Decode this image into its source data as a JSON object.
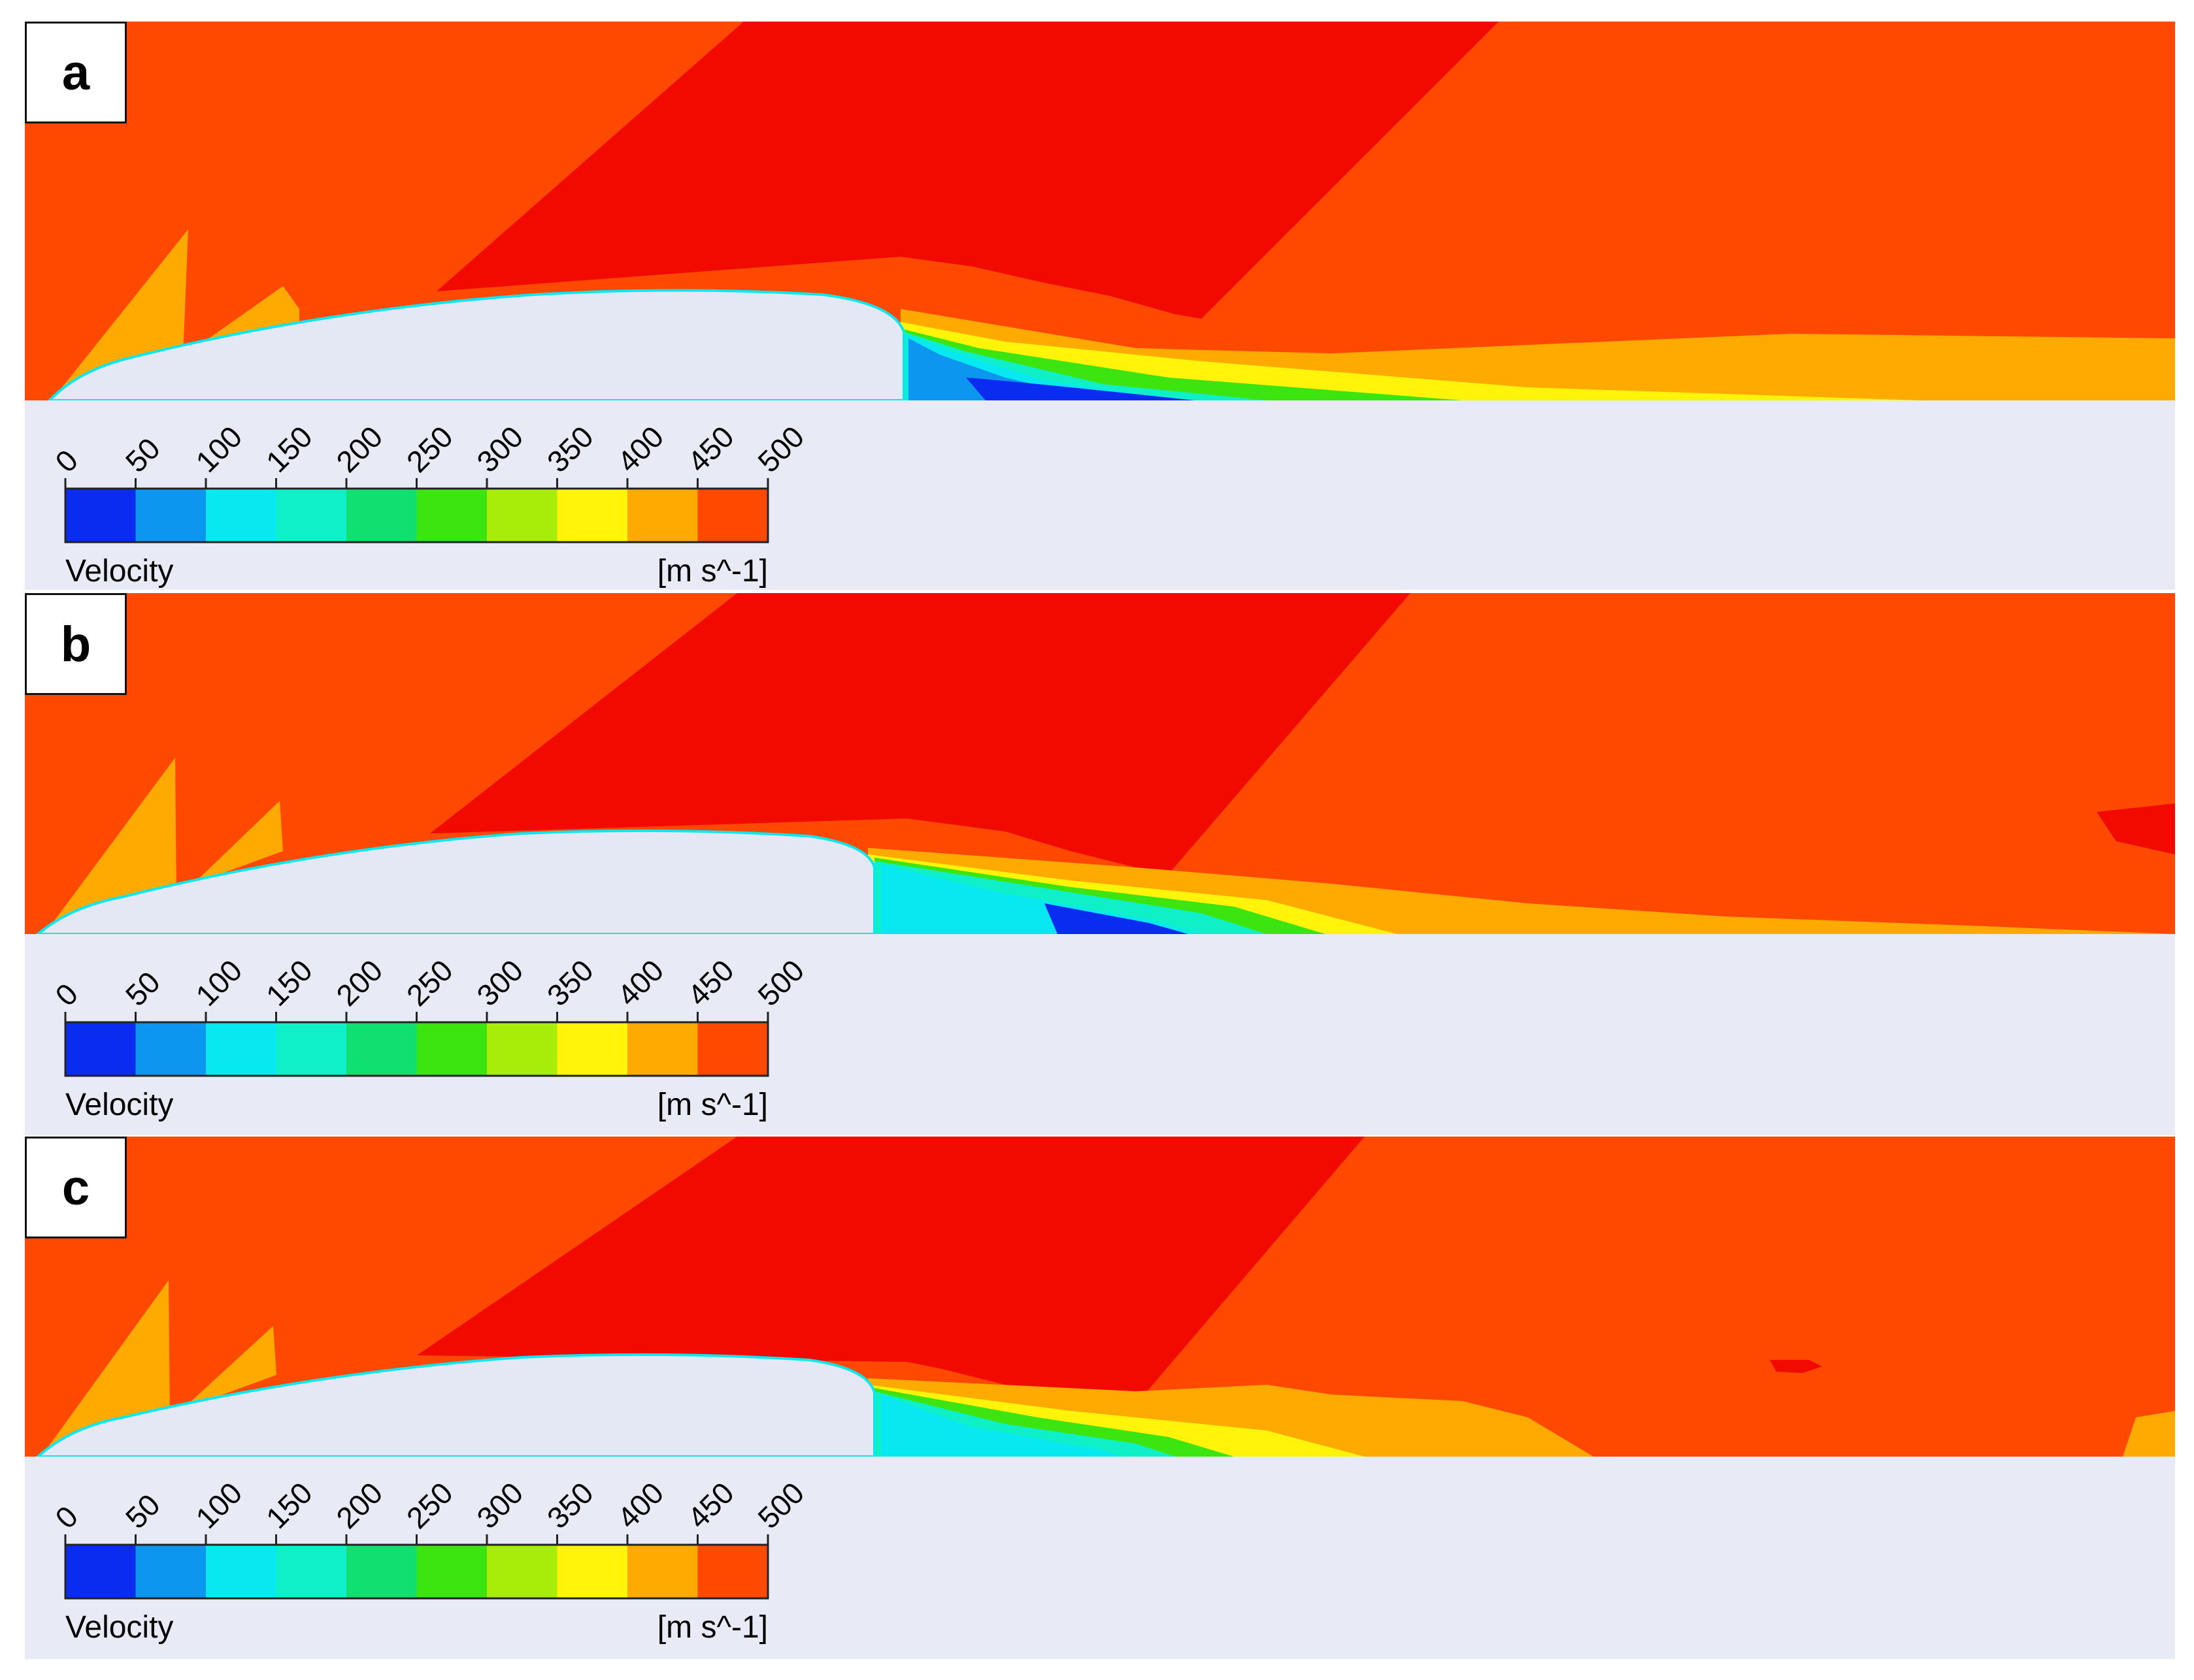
{
  "panels": [
    {
      "label": "a"
    },
    {
      "label": "b"
    },
    {
      "label": "c"
    }
  ],
  "legend": {
    "title": "Velocity",
    "units": "[m s^-1]",
    "ticks": [
      "0",
      "50",
      "100",
      "150",
      "200",
      "250",
      "300",
      "350",
      "400",
      "450",
      "500"
    ],
    "colors": [
      "#0a2cf0",
      "#0c96f0",
      "#08e8f0",
      "#10f0c8",
      "#10e070",
      "#3ce410",
      "#a8ec0a",
      "#fff40a",
      "#ffaa00",
      "#ff4800"
    ]
  },
  "field_colors": {
    "freestream": "#ff4800",
    "expansion_fan": "#f20a00",
    "shock_layer": "#ffaa00",
    "body": "#e4e8f5"
  }
}
